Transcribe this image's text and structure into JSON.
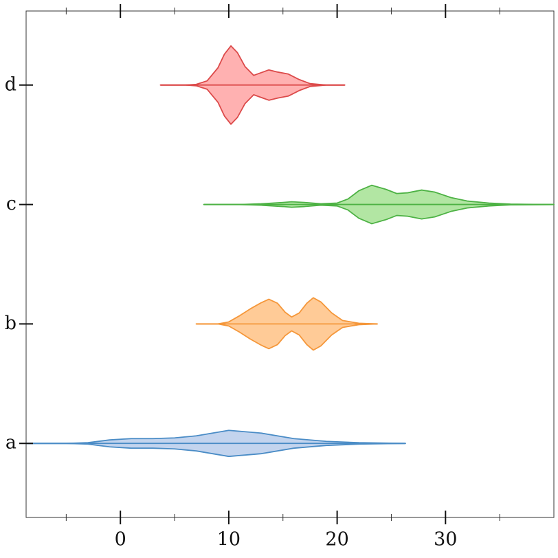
{
  "chart_data": {
    "type": "violin",
    "categories": [
      "a",
      "b",
      "c",
      "d"
    ],
    "violins": [
      {
        "color": "#4a8cc6",
        "fill": "#c3d4ee",
        "x": [
          -8.7,
          -5,
          -3,
          -1,
          1,
          3,
          5,
          7,
          10,
          13,
          16,
          19,
          22,
          26.3
        ],
        "widths": [
          0,
          0,
          0.006,
          0.029,
          0.04,
          0.04,
          0.046,
          0.063,
          0.109,
          0.086,
          0.04,
          0.017,
          0.006,
          0
        ]
      },
      {
        "color": "#f5973a",
        "fill": "#ffcb97",
        "x": [
          7,
          9,
          10,
          11,
          12,
          13,
          13.7,
          14.5,
          15.2,
          15.8,
          16.5,
          17.2,
          17.8,
          18.5,
          19.5,
          20.5,
          22,
          23.7
        ],
        "widths": [
          0,
          0,
          0.017,
          0.069,
          0.127,
          0.178,
          0.207,
          0.173,
          0.098,
          0.058,
          0.092,
          0.173,
          0.219,
          0.184,
          0.092,
          0.029,
          0.006,
          0
        ]
      },
      {
        "color": "#4db244",
        "fill": "#b2e6a3",
        "x": [
          7.7,
          11,
          13,
          15,
          15.8,
          17,
          18.5,
          20,
          21,
          22,
          23.2,
          24.5,
          25.5,
          26.5,
          27.8,
          29,
          30.5,
          32,
          34,
          36,
          40
        ],
        "widths": [
          0,
          0,
          0.006,
          0.017,
          0.023,
          0.017,
          0.006,
          0.012,
          0.046,
          0.115,
          0.161,
          0.127,
          0.092,
          0.098,
          0.121,
          0.104,
          0.058,
          0.029,
          0.012,
          0.003,
          0
        ]
      },
      {
        "color": "#dc4a4a",
        "fill": "#ffb1b1",
        "x": [
          3.7,
          6,
          7,
          8,
          9,
          9.6,
          10.2,
          10.8,
          11.5,
          12.3,
          13,
          13.7,
          14.5,
          15.5,
          16.5,
          17.5,
          19,
          20.7
        ],
        "widths": [
          0,
          0,
          0.006,
          0.035,
          0.144,
          0.259,
          0.328,
          0.271,
          0.155,
          0.081,
          0.104,
          0.127,
          0.109,
          0.092,
          0.046,
          0.012,
          0,
          0
        ]
      }
    ],
    "xlim": [
      -8.7,
      40
    ],
    "xticks": [
      0,
      10,
      20,
      30
    ],
    "xminorticks": [
      -5,
      5,
      15,
      25,
      35
    ],
    "ylim": [
      -0.62,
      3.62
    ]
  }
}
